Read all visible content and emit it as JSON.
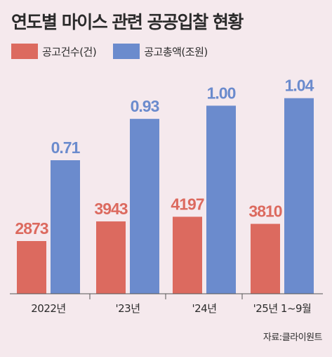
{
  "title": "연도별 마이스 관련 공공입찰 현황",
  "source": "자료:클라이원트",
  "colors": {
    "count": "#dc6a5f",
    "amount": "#6b8bcd",
    "background": "#f5e9ed",
    "text": "#2b2b2b"
  },
  "chart_data": {
    "type": "bar",
    "title": "연도별 마이스 관련 공공입찰 현황",
    "categories": [
      "2022년",
      "'23년",
      "'24년",
      "'25년 1~9월"
    ],
    "series": [
      {
        "name": "공고건수(건)",
        "values": [
          2873,
          3943,
          4197,
          3810
        ],
        "labels": [
          "2873",
          "3943",
          "4197",
          "3810"
        ]
      },
      {
        "name": "공고총액(조원)",
        "values": [
          0.71,
          0.93,
          1.0,
          1.04
        ],
        "labels": [
          "0.71",
          "0.93",
          "1.00",
          "1.04"
        ]
      }
    ],
    "legend_position": "top-left",
    "grid": false,
    "y_axis_visible": false
  }
}
